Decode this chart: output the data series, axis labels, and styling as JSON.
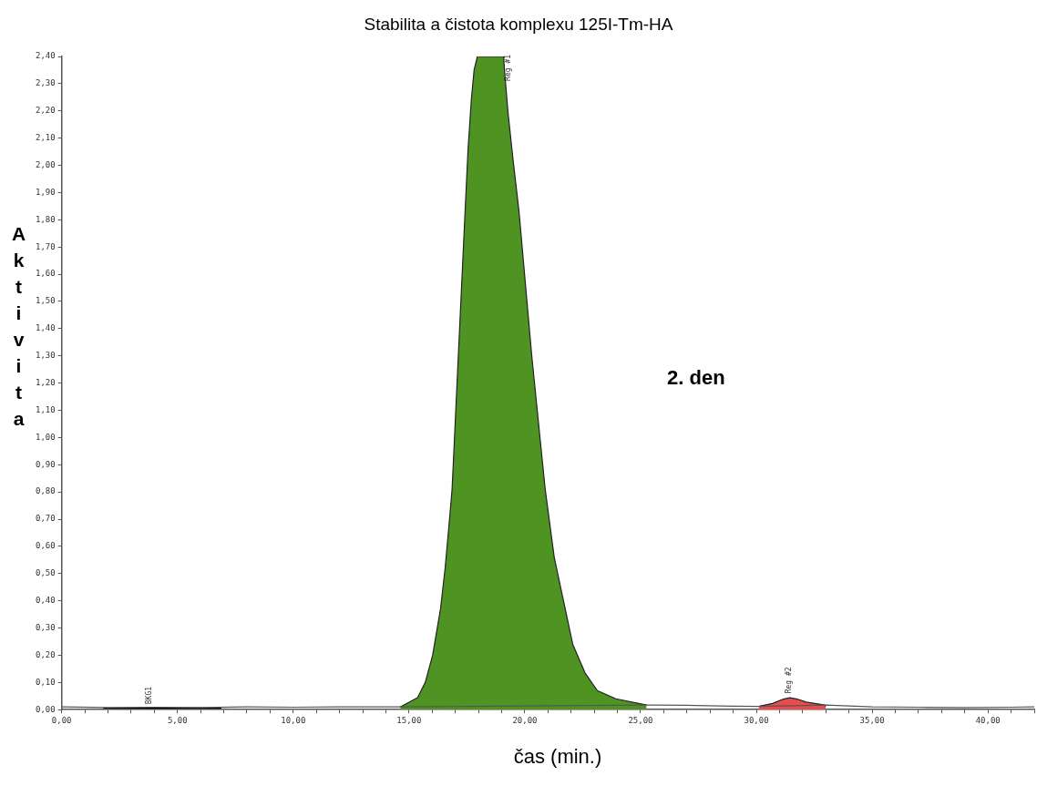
{
  "chart_data": {
    "type": "area",
    "title": "Stabilita a čistota komplexu 125I-Tm-HA",
    "xlabel": "čas (min.)",
    "ylabel": "Aktivita",
    "xlim": [
      0,
      42
    ],
    "xticks": [
      {
        "value": 0,
        "label": "0,00"
      },
      {
        "value": 1,
        "label": null
      },
      {
        "value": 2,
        "label": null
      },
      {
        "value": 3,
        "label": null
      },
      {
        "value": 4,
        "label": null
      },
      {
        "value": 5,
        "label": "5,00"
      },
      {
        "value": 6,
        "label": null
      },
      {
        "value": 7,
        "label": null
      },
      {
        "value": 8,
        "label": null
      },
      {
        "value": 9,
        "label": null
      },
      {
        "value": 10,
        "label": "10,00"
      },
      {
        "value": 11,
        "label": null
      },
      {
        "value": 12,
        "label": null
      },
      {
        "value": 13,
        "label": null
      },
      {
        "value": 14,
        "label": null
      },
      {
        "value": 15,
        "label": "15,00"
      },
      {
        "value": 16,
        "label": null
      },
      {
        "value": 17,
        "label": null
      },
      {
        "value": 18,
        "label": null
      },
      {
        "value": 19,
        "label": null
      },
      {
        "value": 20,
        "label": "20,00"
      },
      {
        "value": 21,
        "label": null
      },
      {
        "value": 22,
        "label": null
      },
      {
        "value": 23,
        "label": null
      },
      {
        "value": 24,
        "label": null
      },
      {
        "value": 25,
        "label": "25,00"
      },
      {
        "value": 26,
        "label": null
      },
      {
        "value": 27,
        "label": null
      },
      {
        "value": 28,
        "label": null
      },
      {
        "value": 29,
        "label": null
      },
      {
        "value": 30,
        "label": "30,00"
      },
      {
        "value": 31,
        "label": null
      },
      {
        "value": 32,
        "label": null
      },
      {
        "value": 33,
        "label": null
      },
      {
        "value": 34,
        "label": null
      },
      {
        "value": 35,
        "label": "35,00"
      },
      {
        "value": 36,
        "label": null
      },
      {
        "value": 37,
        "label": null
      },
      {
        "value": 38,
        "label": null
      },
      {
        "value": 39,
        "label": null
      },
      {
        "value": 40,
        "label": "40,00"
      },
      {
        "value": 41,
        "label": null
      },
      {
        "value": 42,
        "label": null
      }
    ],
    "ylim": [
      0,
      2.4
    ],
    "yticks": [
      {
        "value": 0,
        "label": "0,00"
      },
      {
        "value": 0.1,
        "label": "0,10"
      },
      {
        "value": 0.2,
        "label": "0,20"
      },
      {
        "value": 0.3,
        "label": "0,30"
      },
      {
        "value": 0.4,
        "label": "0,40"
      },
      {
        "value": 0.5,
        "label": "0,50"
      },
      {
        "value": 0.6,
        "label": "0,60"
      },
      {
        "value": 0.7,
        "label": "0,70"
      },
      {
        "value": 0.8,
        "label": "0,80"
      },
      {
        "value": 0.9,
        "label": "0,90"
      },
      {
        "value": 1.0,
        "label": "1,00"
      },
      {
        "value": 1.1,
        "label": "1,10"
      },
      {
        "value": 1.2,
        "label": "1,20"
      },
      {
        "value": 1.3,
        "label": "1,30"
      },
      {
        "value": 1.4,
        "label": "1,40"
      },
      {
        "value": 1.5,
        "label": "1,50"
      },
      {
        "value": 1.6,
        "label": "1,60"
      },
      {
        "value": 1.7,
        "label": "1,70"
      },
      {
        "value": 1.8,
        "label": "1,80"
      },
      {
        "value": 1.9,
        "label": "1,90"
      },
      {
        "value": 2.0,
        "label": "2,00"
      },
      {
        "value": 2.1,
        "label": "2,10"
      },
      {
        "value": 2.2,
        "label": "2,20"
      },
      {
        "value": 2.3,
        "label": "2,30"
      },
      {
        "value": 2.4,
        "label": "2,40"
      }
    ],
    "grid": false,
    "legend": false,
    "marker": "none",
    "series": [
      {
        "type": "line",
        "color": "#555555",
        "x": [
          0,
          2,
          4,
          6,
          8,
          10,
          12,
          14,
          14.6,
          25.3,
          27,
          29,
          30.1,
          33,
          35,
          37,
          39,
          41,
          42
        ],
        "values": [
          0.01,
          0.008,
          0.009,
          0.008,
          0.01,
          0.009,
          0.01,
          0.01,
          0.01,
          0.017,
          0.016,
          0.013,
          0.012,
          0.017,
          0.01,
          0.009,
          0.008,
          0.009,
          0.01
        ]
      },
      {
        "type": "line",
        "color": "#000000",
        "x": [
          1.8,
          3,
          4,
          5,
          6,
          6.9
        ],
        "values": [
          0.005,
          0.005,
          0.006,
          0.005,
          0.006,
          0.005
        ]
      },
      {
        "type": "area",
        "color": "#4f9423",
        "x": [
          14.62,
          15.37,
          15.7,
          16.02,
          16.36,
          16.56,
          16.76,
          16.86,
          17.41,
          17.55,
          17.69,
          17.81,
          17.95,
          18.5,
          19.08,
          19.15,
          19.28,
          19.48,
          19.75,
          20.3,
          20.88,
          21.27,
          21.67,
          22.07,
          22.6,
          23.13,
          23.93,
          25.26
        ],
        "values": [
          0.01,
          0.044,
          0.1,
          0.2,
          0.37,
          0.52,
          0.71,
          0.81,
          1.81,
          2.06,
          2.24,
          2.35,
          2.4,
          2.4,
          2.4,
          2.32,
          2.19,
          2.03,
          1.83,
          1.3,
          0.81,
          0.56,
          0.4,
          0.24,
          0.135,
          0.07,
          0.04,
          0.017
        ]
      },
      {
        "type": "area",
        "color": "#e84c4c",
        "x": [
          30.1,
          30.7,
          31.17,
          31.44,
          31.76,
          32.15,
          32.95,
          32.99
        ],
        "values": [
          0.012,
          0.023,
          0.039,
          0.044,
          0.039,
          0.028,
          0.017,
          0.012
        ]
      }
    ],
    "annotations": [
      {
        "text": "BKG1",
        "x": 3.8,
        "y": 0.01
      },
      {
        "text": "Reg #1",
        "x": 19.3,
        "y": 2.3
      },
      {
        "text": "Reg #2",
        "x": 31.4,
        "y": 0.05
      },
      "2. den"
    ]
  }
}
